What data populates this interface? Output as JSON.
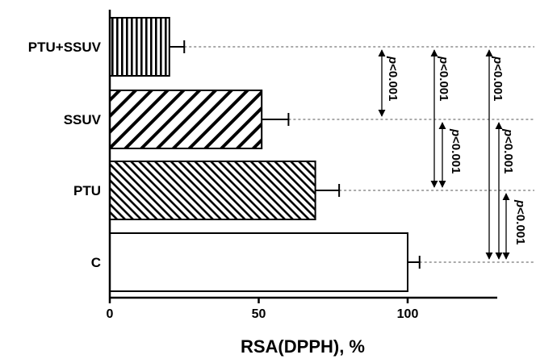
{
  "chart_data": {
    "type": "bar",
    "orientation": "horizontal",
    "categories": [
      "PTU+SSUV",
      "SSUV",
      "PTU",
      "C"
    ],
    "values": [
      20,
      51,
      69,
      100
    ],
    "errors": [
      5,
      9,
      8,
      4
    ],
    "patterns": [
      "vertical-stripes",
      "diagonal-wide",
      "diagonal-narrow",
      "none"
    ],
    "xlabel": "RSA(DPPH), %",
    "ylabel": "",
    "xlim": [
      0,
      130
    ],
    "xticks": [
      0,
      50,
      100
    ],
    "xtick_labels": [
      "0",
      "50",
      "100"
    ],
    "grid": false,
    "comparisons": [
      {
        "from": "PTU+SSUV",
        "to": "SSUV",
        "label": "p<0.001",
        "p_symbol": "p",
        "p_rest": "<0.001"
      },
      {
        "from": "PTU+SSUV",
        "to": "PTU",
        "label": "p<0.001",
        "p_symbol": "p",
        "p_rest": "<0.001"
      },
      {
        "from": "SSUV",
        "to": "PTU",
        "label": "p<0.001",
        "p_symbol": "p",
        "p_rest": "<0.001"
      },
      {
        "from": "PTU+SSUV",
        "to": "C",
        "label": "p<0.001",
        "p_symbol": "p",
        "p_rest": "<0.001"
      },
      {
        "from": "SSUV",
        "to": "C",
        "label": "p<0.001",
        "p_symbol": "p",
        "p_rest": "<0.001"
      },
      {
        "from": "PTU",
        "to": "C",
        "label": "p<0.001",
        "p_symbol": "p",
        "p_rest": "<0.001"
      }
    ],
    "colors": {
      "ink": "#000000",
      "background": "#ffffff",
      "guide": "#555555"
    }
  }
}
